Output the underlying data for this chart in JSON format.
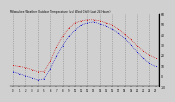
{
  "title": "Milwaukee Weather Outdoor Temperature (vs) Wind Chill (Last 24 Hours)",
  "background_color": "#d0d0d0",
  "plot_bg_color": "#d0d0d0",
  "line1_color": "#cc0000",
  "line2_color": "#0000cc",
  "x_hours": [
    0,
    1,
    2,
    3,
    4,
    5,
    6,
    7,
    8,
    9,
    10,
    11,
    12,
    13,
    14,
    15,
    16,
    17,
    18,
    19,
    20,
    21,
    22,
    23
  ],
  "temp": [
    10,
    9,
    8,
    6,
    4,
    4,
    14,
    28,
    38,
    46,
    51,
    53,
    54,
    54,
    53,
    51,
    49,
    45,
    40,
    35,
    29,
    24,
    20,
    17
  ],
  "windchill": [
    4,
    2,
    0,
    -2,
    -4,
    -3,
    7,
    19,
    29,
    38,
    44,
    49,
    51,
    52,
    50,
    48,
    45,
    41,
    36,
    30,
    23,
    17,
    12,
    9
  ],
  "ylim": [
    -10,
    60
  ],
  "ytick_positions": [
    -10,
    0,
    10,
    20,
    30,
    40,
    50,
    60
  ],
  "ytick_labels": [
    "-10",
    "0",
    "10",
    "20",
    "30",
    "40",
    "50",
    "60"
  ],
  "grid_x_positions": [
    0,
    2,
    4,
    6,
    8,
    10,
    12,
    14,
    16,
    18,
    20,
    22
  ],
  "grid_color": "#888888",
  "dot_size": 1.2,
  "linewidth": 0.5
}
